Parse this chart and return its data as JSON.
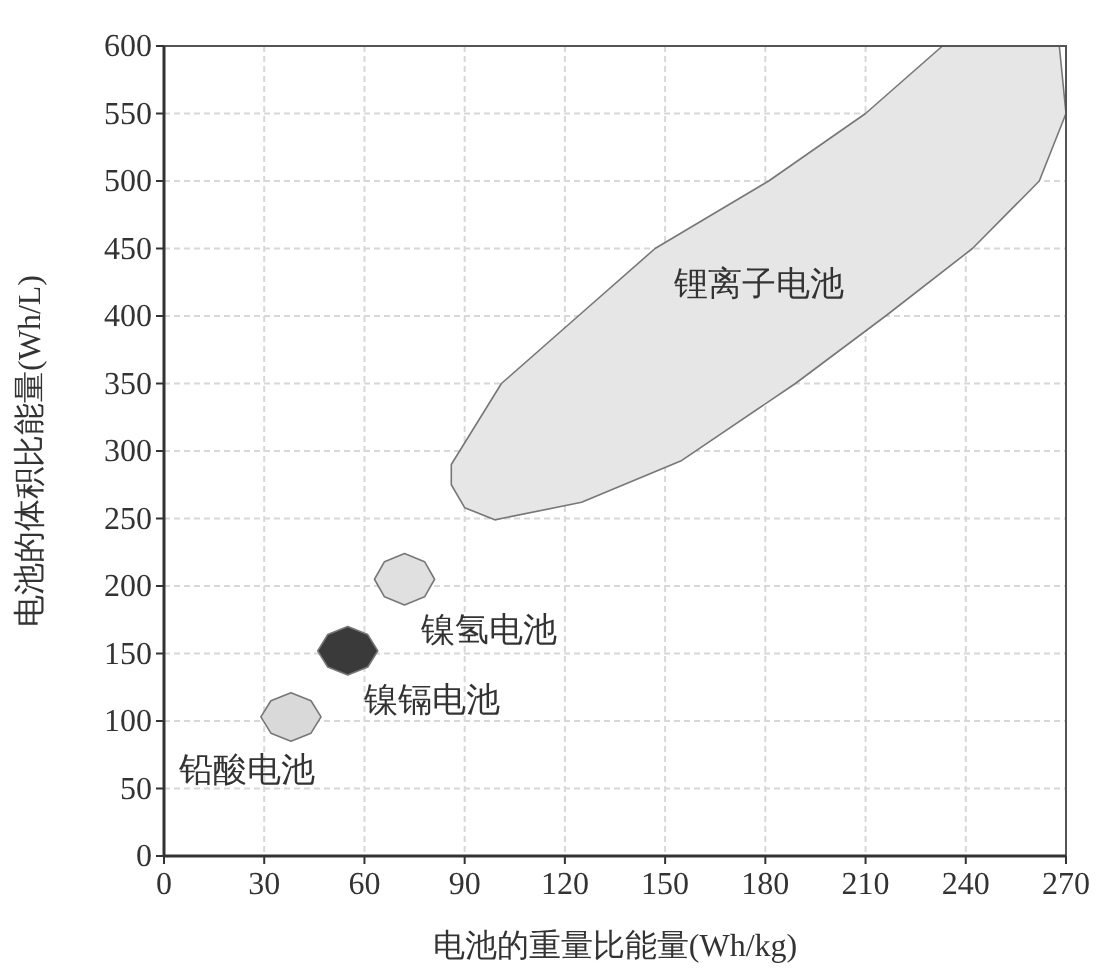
{
  "chart_data": {
    "type": "area",
    "xlabel": "电池的重量比能量(Wh/kg)",
    "ylabel": "电池的体积比能量(Wh/L)",
    "xlim": [
      0,
      270
    ],
    "xticks": [
      0,
      30,
      60,
      90,
      120,
      150,
      180,
      210,
      240,
      270
    ],
    "ylim": [
      0,
      600
    ],
    "yticks": [
      0,
      50,
      100,
      150,
      200,
      250,
      300,
      350,
      400,
      450,
      500,
      550,
      600
    ],
    "grid": true,
    "series": [
      {
        "name": "锂离子电池",
        "color": "#e6e6e6",
        "x": [
          86,
          101,
          124,
          147,
          181,
          210,
          233,
          268,
          270,
          262,
          242,
          216,
          189,
          155,
          125,
          99,
          90,
          86
        ],
        "values": [
          290,
          350,
          400,
          450,
          500,
          550,
          600,
          600,
          550,
          500,
          450,
          400,
          350,
          293,
          262,
          249,
          258,
          275
        ]
      },
      {
        "name": "镍氢电池",
        "color": "#e0e0e0",
        "x": [
          63,
          66,
          72,
          78,
          81,
          78,
          72,
          66
        ],
        "values": [
          205,
          218,
          224,
          218,
          205,
          192,
          186,
          192
        ]
      },
      {
        "name": "镍镉电池",
        "color": "#3a3a3a",
        "x": [
          46,
          49,
          55,
          61,
          64,
          61,
          55,
          49
        ],
        "values": [
          152,
          164,
          170,
          164,
          152,
          140,
          134,
          140
        ]
      },
      {
        "name": "铅酸电池",
        "color": "#d9d9d9",
        "x": [
          29,
          32,
          38,
          44,
          47,
          44,
          38,
          32
        ],
        "values": [
          103,
          115,
          121,
          115,
          103,
          91,
          85,
          91
        ]
      }
    ]
  }
}
